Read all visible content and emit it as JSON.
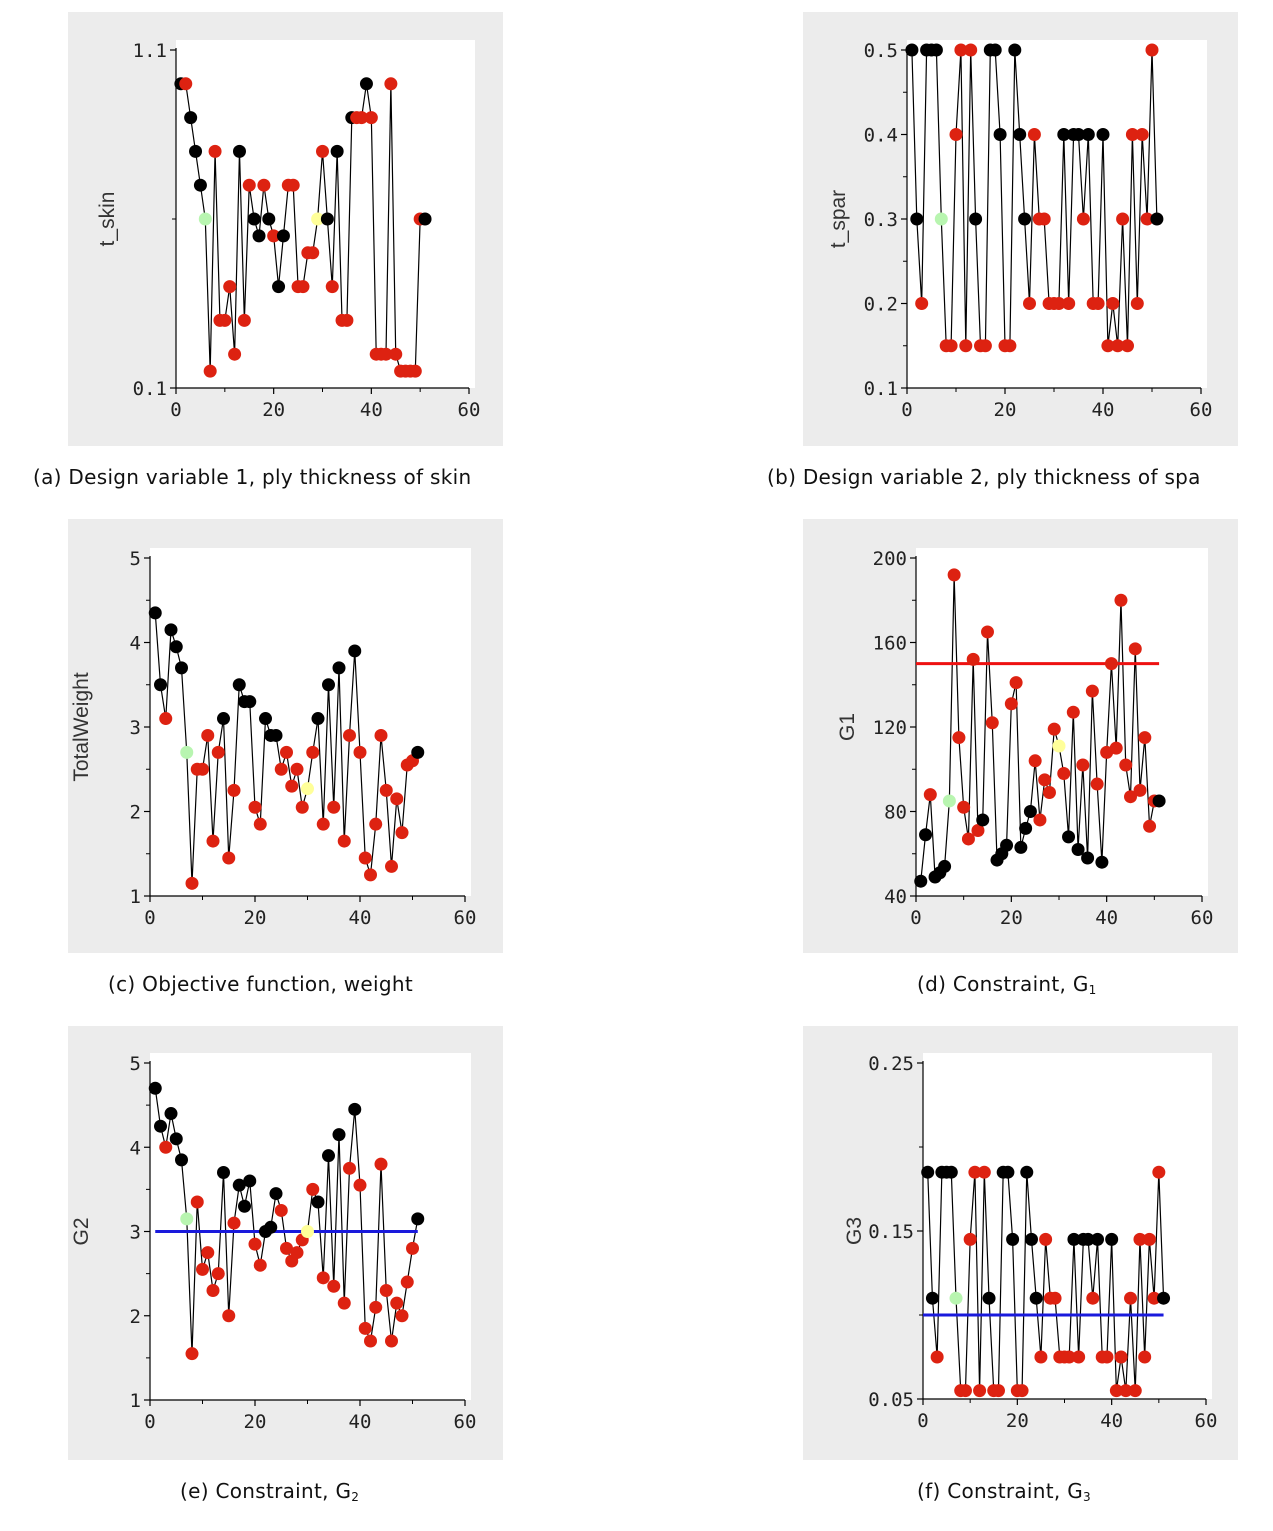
{
  "colors": {
    "infeasible": "#dd2211",
    "feasible": "#000000",
    "initial": "#b8f5b0",
    "optimum": "#ffff99",
    "limit_red": "#ee1111",
    "limit_blue": "#1a1adc"
  },
  "chart_data": [
    {
      "id": "a",
      "type": "scatter",
      "caption_text": "(a) Design variable 1, ply thickness of skin",
      "ylabel": "t_skin",
      "xlabel": "",
      "xlim": [
        0,
        60
      ],
      "xticks": [
        "0",
        "20",
        "40",
        "60"
      ],
      "ylim": [
        0.1,
        1.1
      ],
      "yticks": [
        {
          "v": 1.1,
          "t": "1.1"
        },
        {
          "v": 0.1,
          "t": "0.1"
        }
      ],
      "minor_y": [
        0.6
      ],
      "x": [
        1,
        2,
        3,
        4,
        5,
        6,
        7,
        8,
        9,
        10,
        11,
        12,
        13,
        14,
        15,
        16,
        17,
        18,
        19,
        20,
        21,
        22,
        23,
        24,
        25,
        26,
        27,
        28,
        29,
        30,
        31,
        32,
        33,
        34,
        35,
        36,
        37,
        38,
        39,
        40,
        41,
        42,
        43,
        44,
        45,
        46,
        47,
        48,
        49,
        50,
        51
      ],
      "y": [
        1.0,
        1.0,
        0.9,
        0.8,
        0.7,
        0.6,
        0.15,
        0.8,
        0.3,
        0.3,
        0.4,
        0.2,
        0.8,
        0.3,
        0.7,
        0.6,
        0.55,
        0.7,
        0.6,
        0.55,
        0.4,
        0.55,
        0.7,
        0.7,
        0.4,
        0.4,
        0.5,
        0.5,
        0.6,
        0.8,
        0.6,
        0.4,
        0.8,
        0.3,
        0.3,
        0.9,
        0.9,
        0.9,
        1.0,
        0.9,
        0.2,
        0.2,
        0.2,
        1.0,
        0.2,
        0.15,
        0.15,
        0.15,
        0.15,
        0.6,
        0.6
      ],
      "status": [
        "f",
        "i",
        "f",
        "f",
        "f",
        "s",
        "i",
        "i",
        "i",
        "i",
        "i",
        "i",
        "f",
        "i",
        "i",
        "f",
        "f",
        "i",
        "f",
        "i",
        "f",
        "f",
        "i",
        "i",
        "i",
        "i",
        "i",
        "i",
        "o",
        "i",
        "f",
        "i",
        "f",
        "i",
        "i",
        "f",
        "i",
        "i",
        "f",
        "i",
        "i",
        "i",
        "i",
        "i",
        "i",
        "i",
        "i",
        "i",
        "i",
        "i",
        "f"
      ],
      "limit": null
    },
    {
      "id": "b",
      "type": "scatter",
      "caption_text": "(b) Design variable 2, ply thickness of spa",
      "ylabel": "t_spar",
      "xlabel": "",
      "xlim": [
        0,
        60
      ],
      "xticks": [
        "0",
        "20",
        "40",
        "60"
      ],
      "ylim": [
        0.1,
        0.5
      ],
      "yticks": [
        {
          "v": 0.5,
          "t": "0.5"
        },
        {
          "v": 0.4,
          "t": "0.4"
        },
        {
          "v": 0.3,
          "t": "0.3"
        },
        {
          "v": 0.2,
          "t": "0.2"
        },
        {
          "v": 0.1,
          "t": "0.1"
        }
      ],
      "minor_y": [],
      "x": [
        1,
        2,
        3,
        4,
        5,
        6,
        7,
        8,
        9,
        10,
        11,
        12,
        13,
        14,
        15,
        16,
        17,
        18,
        19,
        20,
        21,
        22,
        23,
        24,
        25,
        26,
        27,
        28,
        29,
        30,
        31,
        32,
        33,
        34,
        35,
        36,
        37,
        38,
        39,
        40,
        41,
        42,
        43,
        44,
        45,
        46,
        47,
        48,
        49,
        50,
        51
      ],
      "y": [
        0.5,
        0.3,
        0.2,
        0.5,
        0.5,
        0.5,
        0.3,
        0.15,
        0.15,
        0.4,
        0.5,
        0.15,
        0.5,
        0.3,
        0.15,
        0.15,
        0.5,
        0.5,
        0.4,
        0.15,
        0.15,
        0.5,
        0.4,
        0.3,
        0.2,
        0.4,
        0.3,
        0.3,
        0.2,
        0.2,
        0.2,
        0.4,
        0.2,
        0.4,
        0.4,
        0.3,
        0.4,
        0.2,
        0.2,
        0.4,
        0.15,
        0.2,
        0.15,
        0.3,
        0.15,
        0.4,
        0.2,
        0.4,
        0.3,
        0.5,
        0.3
      ],
      "status": [
        "f",
        "f",
        "i",
        "f",
        "f",
        "f",
        "s",
        "i",
        "i",
        "i",
        "i",
        "i",
        "i",
        "f",
        "i",
        "i",
        "f",
        "f",
        "f",
        "i",
        "i",
        "f",
        "f",
        "f",
        "i",
        "i",
        "i",
        "i",
        "i",
        "i",
        "i",
        "f",
        "i",
        "f",
        "f",
        "i",
        "f",
        "i",
        "i",
        "f",
        "i",
        "i",
        "i",
        "i",
        "i",
        "i",
        "i",
        "i",
        "i",
        "i",
        "f"
      ],
      "limit": null
    },
    {
      "id": "c",
      "type": "scatter",
      "caption_text": "(c) Objective function, weight",
      "ylabel": "TotalWeight",
      "xlabel": "",
      "xlim": [
        0,
        60
      ],
      "xticks": [
        "0",
        "20",
        "40",
        "60"
      ],
      "ylim": [
        1,
        5
      ],
      "yticks": [
        {
          "v": 5,
          "t": "5"
        },
        {
          "v": 4,
          "t": "4"
        },
        {
          "v": 3,
          "t": "3"
        },
        {
          "v": 2,
          "t": "2"
        },
        {
          "v": 1,
          "t": "1"
        }
      ],
      "minor_y": [],
      "x": [
        1,
        2,
        3,
        4,
        5,
        6,
        7,
        8,
        9,
        10,
        11,
        12,
        13,
        14,
        15,
        16,
        17,
        18,
        19,
        20,
        21,
        22,
        23,
        24,
        25,
        26,
        27,
        28,
        29,
        30,
        31,
        32,
        33,
        34,
        35,
        36,
        37,
        38,
        39,
        40,
        41,
        42,
        43,
        44,
        45,
        46,
        47,
        48,
        49,
        50,
        51
      ],
      "y": [
        4.35,
        3.5,
        3.1,
        4.15,
        3.95,
        3.7,
        2.7,
        1.15,
        2.5,
        2.5,
        2.9,
        1.65,
        2.7,
        3.1,
        1.45,
        2.25,
        3.5,
        3.3,
        3.3,
        2.05,
        1.85,
        3.1,
        2.9,
        2.9,
        2.5,
        2.7,
        2.3,
        2.5,
        2.05,
        2.27,
        2.7,
        3.1,
        1.85,
        3.5,
        2.05,
        3.7,
        1.65,
        2.9,
        3.9,
        2.7,
        1.45,
        1.25,
        1.85,
        2.9,
        2.25,
        1.35,
        2.15,
        1.75,
        2.55,
        2.6,
        2.7
      ],
      "status": [
        "f",
        "f",
        "i",
        "f",
        "f",
        "f",
        "s",
        "i",
        "i",
        "i",
        "i",
        "i",
        "i",
        "f",
        "i",
        "i",
        "f",
        "f",
        "f",
        "i",
        "i",
        "f",
        "f",
        "f",
        "i",
        "i",
        "i",
        "i",
        "i",
        "o",
        "i",
        "f",
        "i",
        "f",
        "i",
        "f",
        "i",
        "i",
        "f",
        "i",
        "i",
        "i",
        "i",
        "i",
        "i",
        "i",
        "i",
        "i",
        "i",
        "i",
        "f"
      ],
      "limit": null
    },
    {
      "id": "d",
      "type": "scatter",
      "caption_text": "(d) Constraint, G",
      "caption_sub": "1",
      "ylabel": "G1",
      "xlabel": "",
      "xlim": [
        0,
        60
      ],
      "xticks": [
        "0",
        "20",
        "40",
        "60"
      ],
      "ylim": [
        40,
        200
      ],
      "yticks": [
        {
          "v": 200,
          "t": "200"
        },
        {
          "v": 160,
          "t": "160"
        },
        {
          "v": 120,
          "t": "120"
        },
        {
          "v": 80,
          "t": "80"
        },
        {
          "v": 40,
          "t": "40"
        }
      ],
      "minor_y": [],
      "x": [
        1,
        2,
        3,
        4,
        5,
        6,
        7,
        8,
        9,
        10,
        11,
        12,
        13,
        14,
        15,
        16,
        17,
        18,
        19,
        20,
        21,
        22,
        23,
        24,
        25,
        26,
        27,
        28,
        29,
        30,
        31,
        32,
        33,
        34,
        35,
        36,
        37,
        38,
        39,
        40,
        41,
        42,
        43,
        44,
        45,
        46,
        47,
        48,
        49,
        50,
        51
      ],
      "y": [
        47,
        69,
        88,
        49,
        51,
        54,
        85,
        192,
        115,
        82,
        67,
        152,
        71,
        76,
        165,
        122,
        57,
        60,
        64,
        131,
        141,
        63,
        72,
        80,
        104,
        76,
        95,
        89,
        119,
        111,
        98,
        68,
        127,
        62,
        102,
        58,
        137,
        93,
        56,
        108,
        150,
        110,
        180,
        102,
        87,
        157,
        90,
        115,
        73,
        85,
        85
      ],
      "status": [
        "f",
        "f",
        "i",
        "f",
        "f",
        "f",
        "s",
        "i",
        "i",
        "i",
        "i",
        "i",
        "i",
        "f",
        "i",
        "i",
        "f",
        "f",
        "f",
        "i",
        "i",
        "f",
        "f",
        "f",
        "i",
        "i",
        "i",
        "i",
        "i",
        "o",
        "i",
        "f",
        "i",
        "f",
        "i",
        "f",
        "i",
        "i",
        "f",
        "i",
        "i",
        "i",
        "i",
        "i",
        "i",
        "i",
        "i",
        "i",
        "i",
        "i",
        "f"
      ],
      "limit": {
        "value": 150,
        "color": "#ee1111",
        "x0": 0,
        "x1": 51
      }
    },
    {
      "id": "e",
      "type": "scatter",
      "caption_text": "(e) Constraint, G",
      "caption_sub": "2",
      "ylabel": "G2",
      "xlabel": "",
      "xlim": [
        0,
        60
      ],
      "xticks": [
        "0",
        "20",
        "40",
        "60"
      ],
      "ylim": [
        1,
        5
      ],
      "yticks": [
        {
          "v": 5,
          "t": "5"
        },
        {
          "v": 4,
          "t": "4"
        },
        {
          "v": 3,
          "t": "3"
        },
        {
          "v": 2,
          "t": "2"
        },
        {
          "v": 1,
          "t": "1"
        }
      ],
      "minor_y": [],
      "x": [
        1,
        2,
        3,
        4,
        5,
        6,
        7,
        8,
        9,
        10,
        11,
        12,
        13,
        14,
        15,
        16,
        17,
        18,
        19,
        20,
        21,
        22,
        23,
        24,
        25,
        26,
        27,
        28,
        29,
        30,
        31,
        32,
        33,
        34,
        35,
        36,
        37,
        38,
        39,
        40,
        41,
        42,
        43,
        44,
        45,
        46,
        47,
        48,
        49,
        50,
        51
      ],
      "y": [
        4.7,
        4.25,
        4.0,
        4.4,
        4.1,
        3.85,
        3.15,
        1.55,
        3.35,
        2.55,
        2.75,
        2.3,
        2.5,
        3.7,
        2.0,
        3.1,
        3.55,
        3.3,
        3.6,
        2.85,
        2.6,
        3.0,
        3.05,
        3.45,
        3.25,
        2.8,
        2.65,
        2.75,
        2.9,
        3.0,
        3.5,
        3.35,
        2.45,
        3.9,
        2.35,
        4.15,
        2.15,
        3.75,
        4.45,
        3.55,
        1.85,
        1.7,
        2.1,
        3.8,
        2.3,
        1.7,
        2.15,
        2.0,
        2.4,
        2.8,
        3.15
      ],
      "status": [
        "f",
        "f",
        "i",
        "f",
        "f",
        "f",
        "s",
        "i",
        "i",
        "i",
        "i",
        "i",
        "i",
        "f",
        "i",
        "i",
        "f",
        "f",
        "f",
        "i",
        "i",
        "f",
        "f",
        "f",
        "i",
        "i",
        "i",
        "i",
        "i",
        "o",
        "i",
        "f",
        "i",
        "f",
        "i",
        "f",
        "i",
        "i",
        "f",
        "i",
        "i",
        "i",
        "i",
        "i",
        "i",
        "i",
        "i",
        "i",
        "i",
        "i",
        "f"
      ],
      "limit": {
        "value": 3.0,
        "color": "#1a1adc",
        "x0": 1,
        "x1": 51
      }
    },
    {
      "id": "f",
      "type": "scatter",
      "caption_text": "(f) Constraint, G",
      "caption_sub": "3",
      "ylabel": "G3",
      "xlabel": "",
      "xlim": [
        0,
        60
      ],
      "xticks": [
        "0",
        "20",
        "40",
        "60"
      ],
      "ylim": [
        0.05,
        0.25
      ],
      "yticks": [
        {
          "v": 0.25,
          "t": "0.25"
        },
        {
          "v": 0.15,
          "t": "0.15"
        },
        {
          "v": 0.05,
          "t": "0.05"
        }
      ],
      "minor_y": [],
      "x": [
        1,
        2,
        3,
        4,
        5,
        6,
        7,
        8,
        9,
        10,
        11,
        12,
        13,
        14,
        15,
        16,
        17,
        18,
        19,
        20,
        21,
        22,
        23,
        24,
        25,
        26,
        27,
        28,
        29,
        30,
        31,
        32,
        33,
        34,
        35,
        36,
        37,
        38,
        39,
        40,
        41,
        42,
        43,
        44,
        45,
        46,
        47,
        48,
        49,
        50,
        51
      ],
      "y": [
        0.185,
        0.11,
        0.075,
        0.185,
        0.185,
        0.185,
        0.11,
        0.055,
        0.055,
        0.145,
        0.185,
        0.055,
        0.185,
        0.11,
        0.055,
        0.055,
        0.185,
        0.185,
        0.145,
        0.055,
        0.055,
        0.185,
        0.145,
        0.11,
        0.075,
        0.145,
        0.11,
        0.11,
        0.075,
        0.075,
        0.075,
        0.145,
        0.075,
        0.145,
        0.145,
        0.11,
        0.145,
        0.075,
        0.075,
        0.145,
        0.055,
        0.075,
        0.055,
        0.11,
        0.055,
        0.145,
        0.075,
        0.145,
        0.11,
        0.185,
        0.11
      ],
      "status": [
        "f",
        "f",
        "i",
        "f",
        "f",
        "f",
        "s",
        "i",
        "i",
        "i",
        "i",
        "i",
        "i",
        "f",
        "i",
        "i",
        "f",
        "f",
        "f",
        "i",
        "i",
        "f",
        "f",
        "f",
        "i",
        "i",
        "i",
        "i",
        "i",
        "i",
        "i",
        "f",
        "i",
        "f",
        "f",
        "i",
        "f",
        "i",
        "i",
        "f",
        "i",
        "i",
        "i",
        "i",
        "i",
        "i",
        "i",
        "i",
        "i",
        "i",
        "f"
      ],
      "limit": {
        "value": 0.1,
        "color": "#1a1adc",
        "x0": 0,
        "x1": 51
      }
    }
  ]
}
